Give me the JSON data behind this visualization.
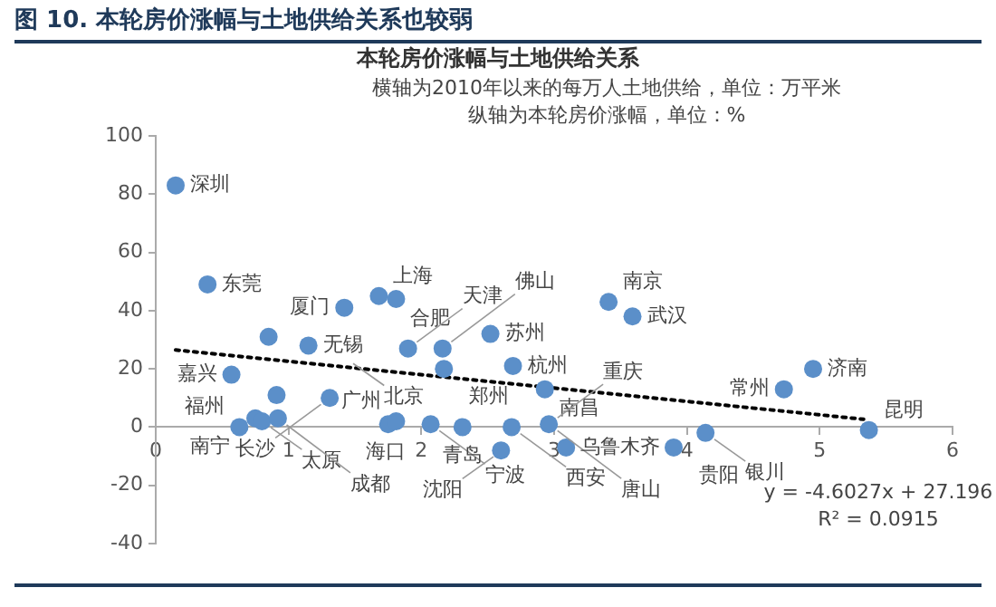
{
  "chart_data": {
    "type": "scatter",
    "title": "图 10. 本轮房价涨幅与土地供给关系也较弱",
    "subtitle": "本轮房价涨幅与土地供给关系",
    "annotations": [
      "横轴为2010年以来的每万人土地供给，单位：万平米",
      "纵轴为本轮房价涨幅，单位：%",
      "y = -4.6027x + 27.196",
      "R² = 0.0915",
      {
        "text": "深圳",
        "x": 0.15,
        "y": 83
      },
      {
        "text": "东莞",
        "x": 0.39,
        "y": 49
      },
      {
        "text": "无锡",
        "x": 1.15,
        "y": 28
      },
      {
        "text": "北京",
        "x": 1.42,
        "y": 24
      },
      {
        "text": "嘉兴",
        "x": 0.57,
        "y": 18
      },
      {
        "text": "长沙",
        "x": 1.31,
        "y": 10
      },
      {
        "text": "南宁",
        "x": 0.75,
        "y": 3
      },
      {
        "text": "福州",
        "x": 0.63,
        "y": 0
      },
      {
        "text": "太原",
        "x": 0.8,
        "y": 2
      },
      {
        "text": "成都",
        "x": 0.92,
        "y": 3
      },
      {
        "text": "厦门",
        "x": 1.42,
        "y": 41
      },
      {
        "text": "上海",
        "x": 1.68,
        "y": 45
      },
      {
        "text": "合肥",
        "x": 1.81,
        "y": 44
      },
      {
        "text": "天津",
        "x": 1.9,
        "y": 27
      },
      {
        "text": "佛山",
        "x": 2.16,
        "y": 27
      },
      {
        "text": "苏州",
        "x": 2.52,
        "y": 32
      },
      {
        "text": "郑州",
        "x": 2.17,
        "y": 20
      },
      {
        "text": "广州",
        "x": 1.81,
        "y": 2
      },
      {
        "text": "海口",
        "x": 2.07,
        "y": 1
      },
      {
        "text": "宁波",
        "x": 2.07,
        "y": 1
      },
      {
        "text": "青岛",
        "x": 2.31,
        "y": 0
      },
      {
        "text": "杭州",
        "x": 2.69,
        "y": 21
      },
      {
        "text": "南昌",
        "x": 2.93,
        "y": 13
      },
      {
        "text": "西安",
        "x": 2.68,
        "y": 0
      },
      {
        "text": "重庆",
        "x": 2.96,
        "y": 1
      },
      {
        "text": "唐山",
        "x": 2.96,
        "y": 1
      },
      {
        "text": "沈阳",
        "x": 2.61,
        "y": -8
      },
      {
        "text": "乌鲁木齐",
        "x": 3.09,
        "y": -7
      },
      {
        "text": "贵阳",
        "x": 3.9,
        "y": -7
      },
      {
        "text": "银川",
        "x": 4.14,
        "y": -2
      },
      {
        "text": "南京",
        "x": 3.41,
        "y": 43
      },
      {
        "text": "武汉",
        "x": 3.59,
        "y": 38
      },
      {
        "text": "济南",
        "x": 4.95,
        "y": 20
      },
      {
        "text": "常州",
        "x": 4.73,
        "y": 13
      },
      {
        "text": "昆明",
        "x": 5.37,
        "y": -1
      }
    ],
    "series": [
      {
        "color": "#5b8fc9",
        "marker": "circle",
        "x": [
          0.15,
          0.39,
          0.85,
          1.15,
          0.57,
          0.91,
          1.31,
          0.63,
          0.75,
          0.8,
          0.92,
          1.42,
          1.68,
          1.81,
          1.9,
          2.16,
          2.52,
          2.17,
          1.75,
          1.81,
          2.07,
          2.31,
          2.6,
          2.69,
          2.93,
          2.68,
          2.96,
          3.09,
          3.9,
          4.14,
          3.41,
          3.59,
          4.95,
          4.73,
          5.37
        ],
        "values": [
          83,
          49,
          31,
          28,
          18,
          11,
          10,
          0,
          3,
          2,
          3,
          41,
          45,
          44,
          27,
          27,
          32,
          20,
          1,
          2,
          1,
          0,
          -8,
          21,
          13,
          0,
          1,
          -7,
          -7,
          -2,
          43,
          38,
          20,
          13,
          -1
        ]
      },
      {
        "type": "line",
        "color": "#000000",
        "line_style": "dotted",
        "marker": "none",
        "x": [
          0.15,
          5.33
        ],
        "values": [
          26.5,
          2.7
        ]
      }
    ],
    "xlim": [
      0,
      6
    ],
    "ylim": [
      -40,
      100
    ],
    "xticks": [
      0,
      1,
      2,
      3,
      4,
      5,
      6
    ],
    "yticks": [
      -40,
      -20,
      0,
      20,
      40,
      60,
      80,
      100
    ]
  }
}
